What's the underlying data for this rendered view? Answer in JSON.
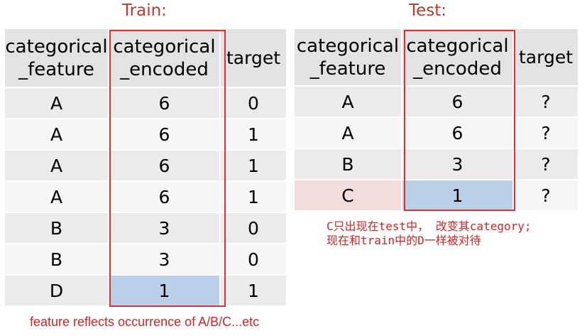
{
  "train": {
    "title": "Train:",
    "headers": {
      "col1_line1": "categorical",
      "col1_line2": "_feature",
      "col2_line1": "categorical",
      "col2_line2": "_encoded",
      "col3": "target"
    },
    "rows": [
      {
        "feature": "A",
        "encoded": "6",
        "target": "0"
      },
      {
        "feature": "A",
        "encoded": "6",
        "target": "1"
      },
      {
        "feature": "A",
        "encoded": "6",
        "target": "1"
      },
      {
        "feature": "A",
        "encoded": "6",
        "target": "1"
      },
      {
        "feature": "B",
        "encoded": "3",
        "target": "0"
      },
      {
        "feature": "B",
        "encoded": "3",
        "target": "0"
      },
      {
        "feature": "D",
        "encoded": "1",
        "target": "1"
      }
    ],
    "note": "feature reflects occurrence of A/B/C...etc"
  },
  "test": {
    "title": "Test:",
    "headers": {
      "col1_line1": "categorical",
      "col1_line2": "_feature",
      "col2_line1": "categorical",
      "col2_line2": "_encoded",
      "col3": "target"
    },
    "rows": [
      {
        "feature": "A",
        "encoded": "6",
        "target": "?"
      },
      {
        "feature": "A",
        "encoded": "6",
        "target": "?"
      },
      {
        "feature": "B",
        "encoded": "3",
        "target": "?"
      },
      {
        "feature": "C",
        "encoded": "1",
        "target": "?"
      }
    ],
    "note_line1": "C只出现在test中， 改变其category;",
    "note_line2": "现在和train中的D一样被对待"
  },
  "colors": {
    "title": "#c0392b",
    "annotation": "#e02020",
    "highlight_blue": "#bad0e8",
    "highlight_pink": "#f3dcdc",
    "header_bg": "#e3e3e3"
  }
}
